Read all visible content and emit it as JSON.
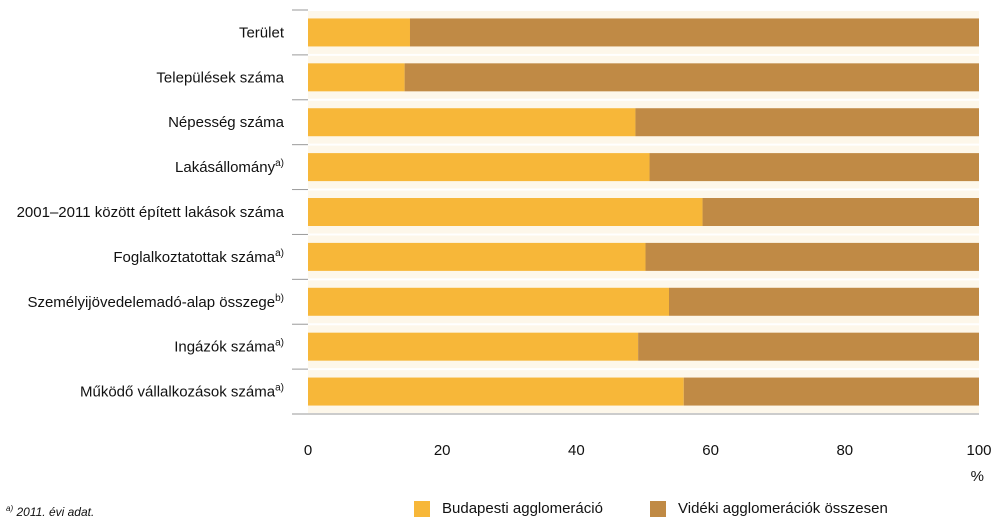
{
  "chart_data": {
    "type": "bar",
    "orientation": "horizontal",
    "stacked": true,
    "percent_stacked": true,
    "categories": [
      {
        "label": "Terület",
        "sup": ""
      },
      {
        "label": "Települések száma",
        "sup": ""
      },
      {
        "label": "Népesség száma",
        "sup": ""
      },
      {
        "label": "Lakásállomány",
        "sup": "a)"
      },
      {
        "label": "2001–2011 között épített lakások száma",
        "sup": ""
      },
      {
        "label": "Foglalkoztatottak száma",
        "sup": "a)"
      },
      {
        "label": "Személyijövedelemadó-alap összege",
        "sup": "b)"
      },
      {
        "label": "Ingázók száma",
        "sup": "a)"
      },
      {
        "label": "Működő vállalkozások száma",
        "sup": "a)"
      }
    ],
    "series": [
      {
        "name": "Budapesti agglomeráció",
        "color": "#f7b739",
        "values": [
          15.2,
          14.4,
          48.8,
          50.9,
          58.8,
          50.3,
          53.8,
          49.2,
          56.0
        ]
      },
      {
        "name": "Vidéki agglomerációk összesen",
        "color": "#c08a45",
        "values": [
          84.8,
          85.6,
          51.2,
          49.1,
          41.2,
          49.7,
          46.2,
          50.8,
          44.0
        ]
      }
    ],
    "xlim": [
      0,
      100
    ],
    "xticks": [
      "0",
      "20",
      "40",
      "60",
      "80",
      "100"
    ],
    "xunit": "%",
    "legend_position": "bottom",
    "plot_background": "#fdf7ea",
    "footnotes": [
      {
        "sup": "a)",
        "text": "2011. évi adat."
      }
    ]
  }
}
